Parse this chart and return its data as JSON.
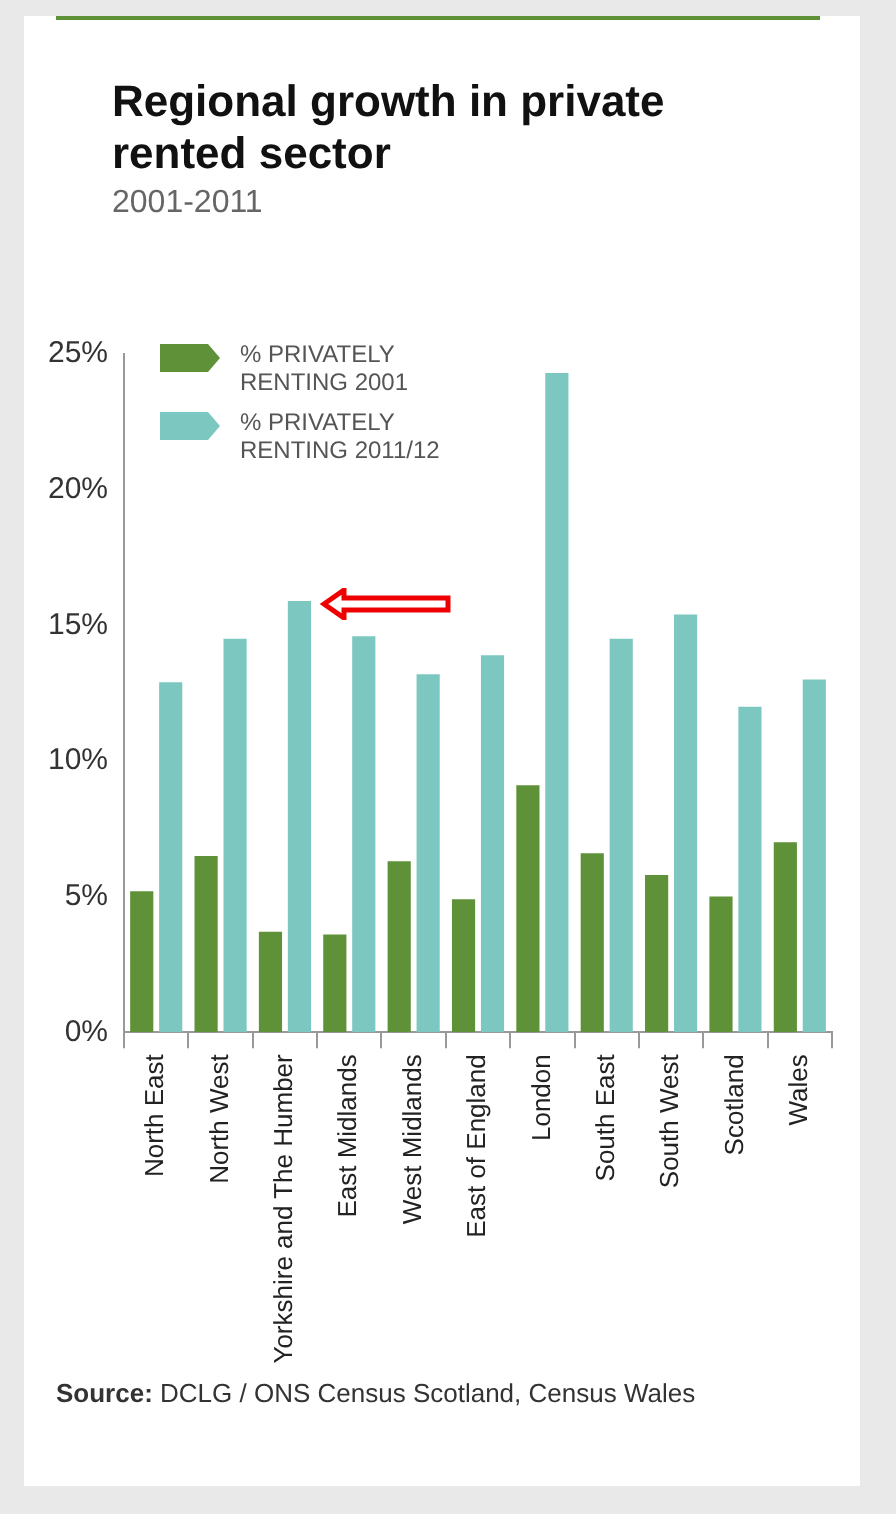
{
  "chart_data": {
    "type": "bar",
    "title": "Regional growth in private rented sector",
    "subtitle": "2001-2011",
    "categories": [
      "North East",
      "North West",
      "Yorkshire and The Humber",
      "East Midlands",
      "West Midlands",
      "East of England",
      "London",
      "South East",
      "South West",
      "Scotland",
      "Wales"
    ],
    "series": [
      {
        "name": "% PRIVATELY RENTING 2001",
        "color": "#5f9138",
        "values": [
          5.2,
          6.5,
          3.7,
          3.6,
          6.3,
          4.9,
          9.1,
          6.6,
          5.8,
          5.0,
          7.0
        ]
      },
      {
        "name": "% PRIVATELY RENTING 2011/12",
        "color": "#7cc7c0",
        "values": [
          12.9,
          14.5,
          15.9,
          14.6,
          13.2,
          13.9,
          24.3,
          14.5,
          15.4,
          12.0,
          13.0
        ]
      }
    ],
    "ylim": [
      0,
      25
    ],
    "yticks": [
      {
        "value": 0,
        "label": "0%"
      },
      {
        "value": 5,
        "label": "5%"
      },
      {
        "value": 10,
        "label": "10%"
      },
      {
        "value": 15,
        "label": "15%"
      },
      {
        "value": 20,
        "label": "20%"
      },
      {
        "value": 25,
        "label": "25%"
      }
    ],
    "grid": false,
    "legend": "top left",
    "annotations": [
      "Source: DCLG / ONS Census Scotland, Census Wales"
    ]
  }
}
